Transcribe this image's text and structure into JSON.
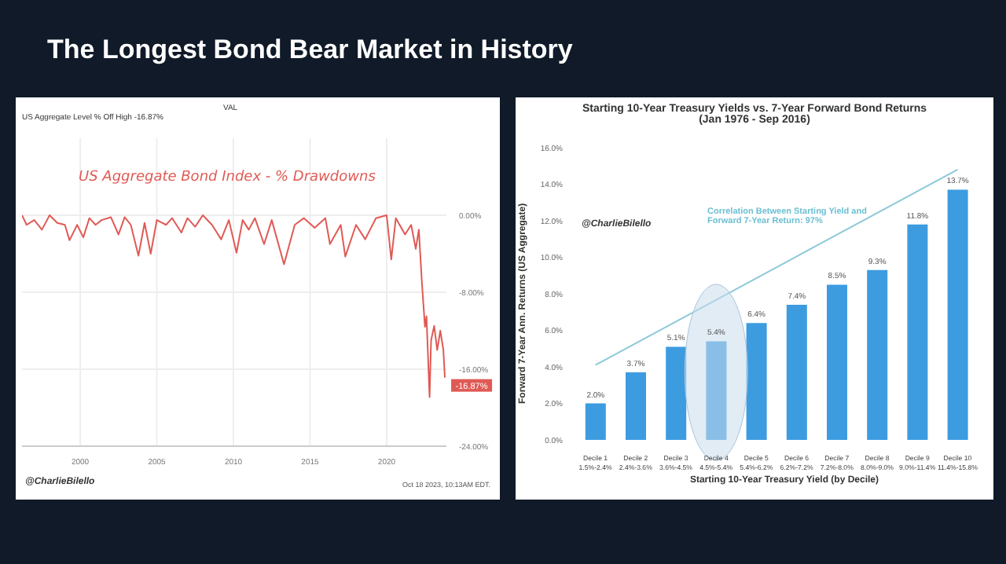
{
  "chart_data": [
    {
      "type": "line",
      "title": "The Longest Bond Bear Market in History",
      "subtitle": "US Aggregate Bond Index - % Drawdowns",
      "annotations": [
        "VAL",
        "US Aggregate Level % Off High  -16.87%",
        {
          "text": "-16.87%",
          "x": 2023.8,
          "y": -16.87
        },
        "@CharlieBilello",
        "Oct 18 2023, 10:13AM EDT."
      ],
      "x": [
        1996.2,
        1996.5,
        1997,
        1997.5,
        1998,
        1998.5,
        1999,
        1999.3,
        1999.8,
        2000.2,
        2000.6,
        2001,
        2001.4,
        2002,
        2002.5,
        2002.9,
        2003.3,
        2003.8,
        2004.2,
        2004.6,
        2005,
        2005.6,
        2006,
        2006.6,
        2007,
        2007.5,
        2008,
        2008.6,
        2009.2,
        2009.7,
        2010.2,
        2010.6,
        2011,
        2011.4,
        2012,
        2012.5,
        2013.3,
        2014,
        2014.6,
        2015.3,
        2016,
        2016.3,
        2017,
        2017.3,
        2018,
        2018.6,
        2019.3,
        2020,
        2020.3,
        2020.6,
        2021.2,
        2021.6,
        2021.9,
        2022.1,
        2022.3,
        2022.5,
        2022.6,
        2022.8,
        2022.9,
        2023.1,
        2023.3,
        2023.5,
        2023.7,
        2023.8
      ],
      "series": [
        {
          "color": "#e05a55",
          "values": [
            0,
            -1,
            -0.5,
            -1.5,
            0,
            -0.8,
            -1,
            -2.6,
            -1,
            -2.3,
            -0.3,
            -1,
            -0.5,
            -0.2,
            -2,
            -0.2,
            -1,
            -4.2,
            -0.8,
            -4,
            -0.5,
            -1,
            -0.3,
            -1.8,
            -0.3,
            -1.2,
            0,
            -1,
            -2.5,
            -0.5,
            -3.9,
            -0.5,
            -1.5,
            -0.3,
            -3,
            -0.5,
            -5.1,
            -1,
            -0.3,
            -1.3,
            -0.3,
            -3,
            -1,
            -4.3,
            -1,
            -2.5,
            -0.3,
            0,
            -4.6,
            -0.3,
            -2,
            -1,
            -3.5,
            -1.5,
            -7,
            -11.6,
            -10.5,
            -18.9,
            -13,
            -11.5,
            -14,
            -12,
            -14,
            -16.87
          ]
        }
      ],
      "xlim": [
        1996.2,
        2023.9
      ],
      "xticks": [
        2000,
        2005,
        2010,
        2015,
        2020
      ],
      "ylim": [
        -24,
        8
      ],
      "yticks": [
        {
          "value": 0,
          "label": "0.00%"
        },
        {
          "value": -8,
          "label": "-8.00%"
        },
        {
          "value": -16,
          "label": "-16.00%"
        },
        {
          "value": -24,
          "label": "-24.00%"
        }
      ],
      "grid": true,
      "marker": "none",
      "line_style": "solid"
    },
    {
      "type": "bar",
      "title": "Starting 10-Year Treasury Yields vs. 7-Year Forward Bond Returns",
      "subtitle": "(Jan 1976 - Sep 2016)",
      "xlabel": "Starting 10-Year Treasury Yield (by Decile)",
      "ylabel": "Forward 7-Year Ann. Returns (US Aggregate)",
      "annotations": [
        "Correlation Between Starting Yield and Forward 7-Year Return: 97%",
        "@CharlieBilello"
      ],
      "categories": [
        "Decile 1\n1.5%-2.4%",
        "Decile 2\n2.4%-3.6%",
        "Decile 3\n3.6%-4.5%",
        "Decile 4\n4.5%-5.4%",
        "Decile 5\n5.4%-6.2%",
        "Decile 6\n6.2%-7.2%",
        "Decile 7\n7.2%-8.0%",
        "Decile 8\n8.0%-9.0%",
        "Decile 9\n9.0%-11.4%",
        "Decile 10\n11.4%-15.8%"
      ],
      "series": [
        {
          "color": "#3d9be0",
          "values": [
            2.0,
            3.7,
            5.1,
            5.4,
            6.4,
            7.4,
            8.5,
            9.3,
            11.8,
            13.7
          ],
          "value_labels": [
            "2.0%",
            "3.7%",
            "5.1%",
            "5.4%",
            "6.4%",
            "7.4%",
            "8.5%",
            "9.3%",
            "11.8%",
            "13.7%"
          ]
        },
        {
          "type": "line",
          "color": "#8cc9d8",
          "values": [
            4.1,
            null,
            null,
            null,
            null,
            null,
            null,
            null,
            null,
            14.8
          ]
        }
      ],
      "ylim": [
        0,
        16
      ],
      "yticks": [
        {
          "value": 0,
          "label": "0.0%"
        },
        {
          "value": 2,
          "label": "2.0%"
        },
        {
          "value": 4,
          "label": "4.0%"
        },
        {
          "value": 6,
          "label": "6.0%"
        },
        {
          "value": 8,
          "label": "8.0%"
        },
        {
          "value": 10,
          "label": "10.0%"
        },
        {
          "value": 12,
          "label": "12.0%"
        },
        {
          "value": 14,
          "label": "14.0%"
        },
        {
          "value": 16,
          "label": "16.0%"
        }
      ],
      "grid": false
    }
  ]
}
